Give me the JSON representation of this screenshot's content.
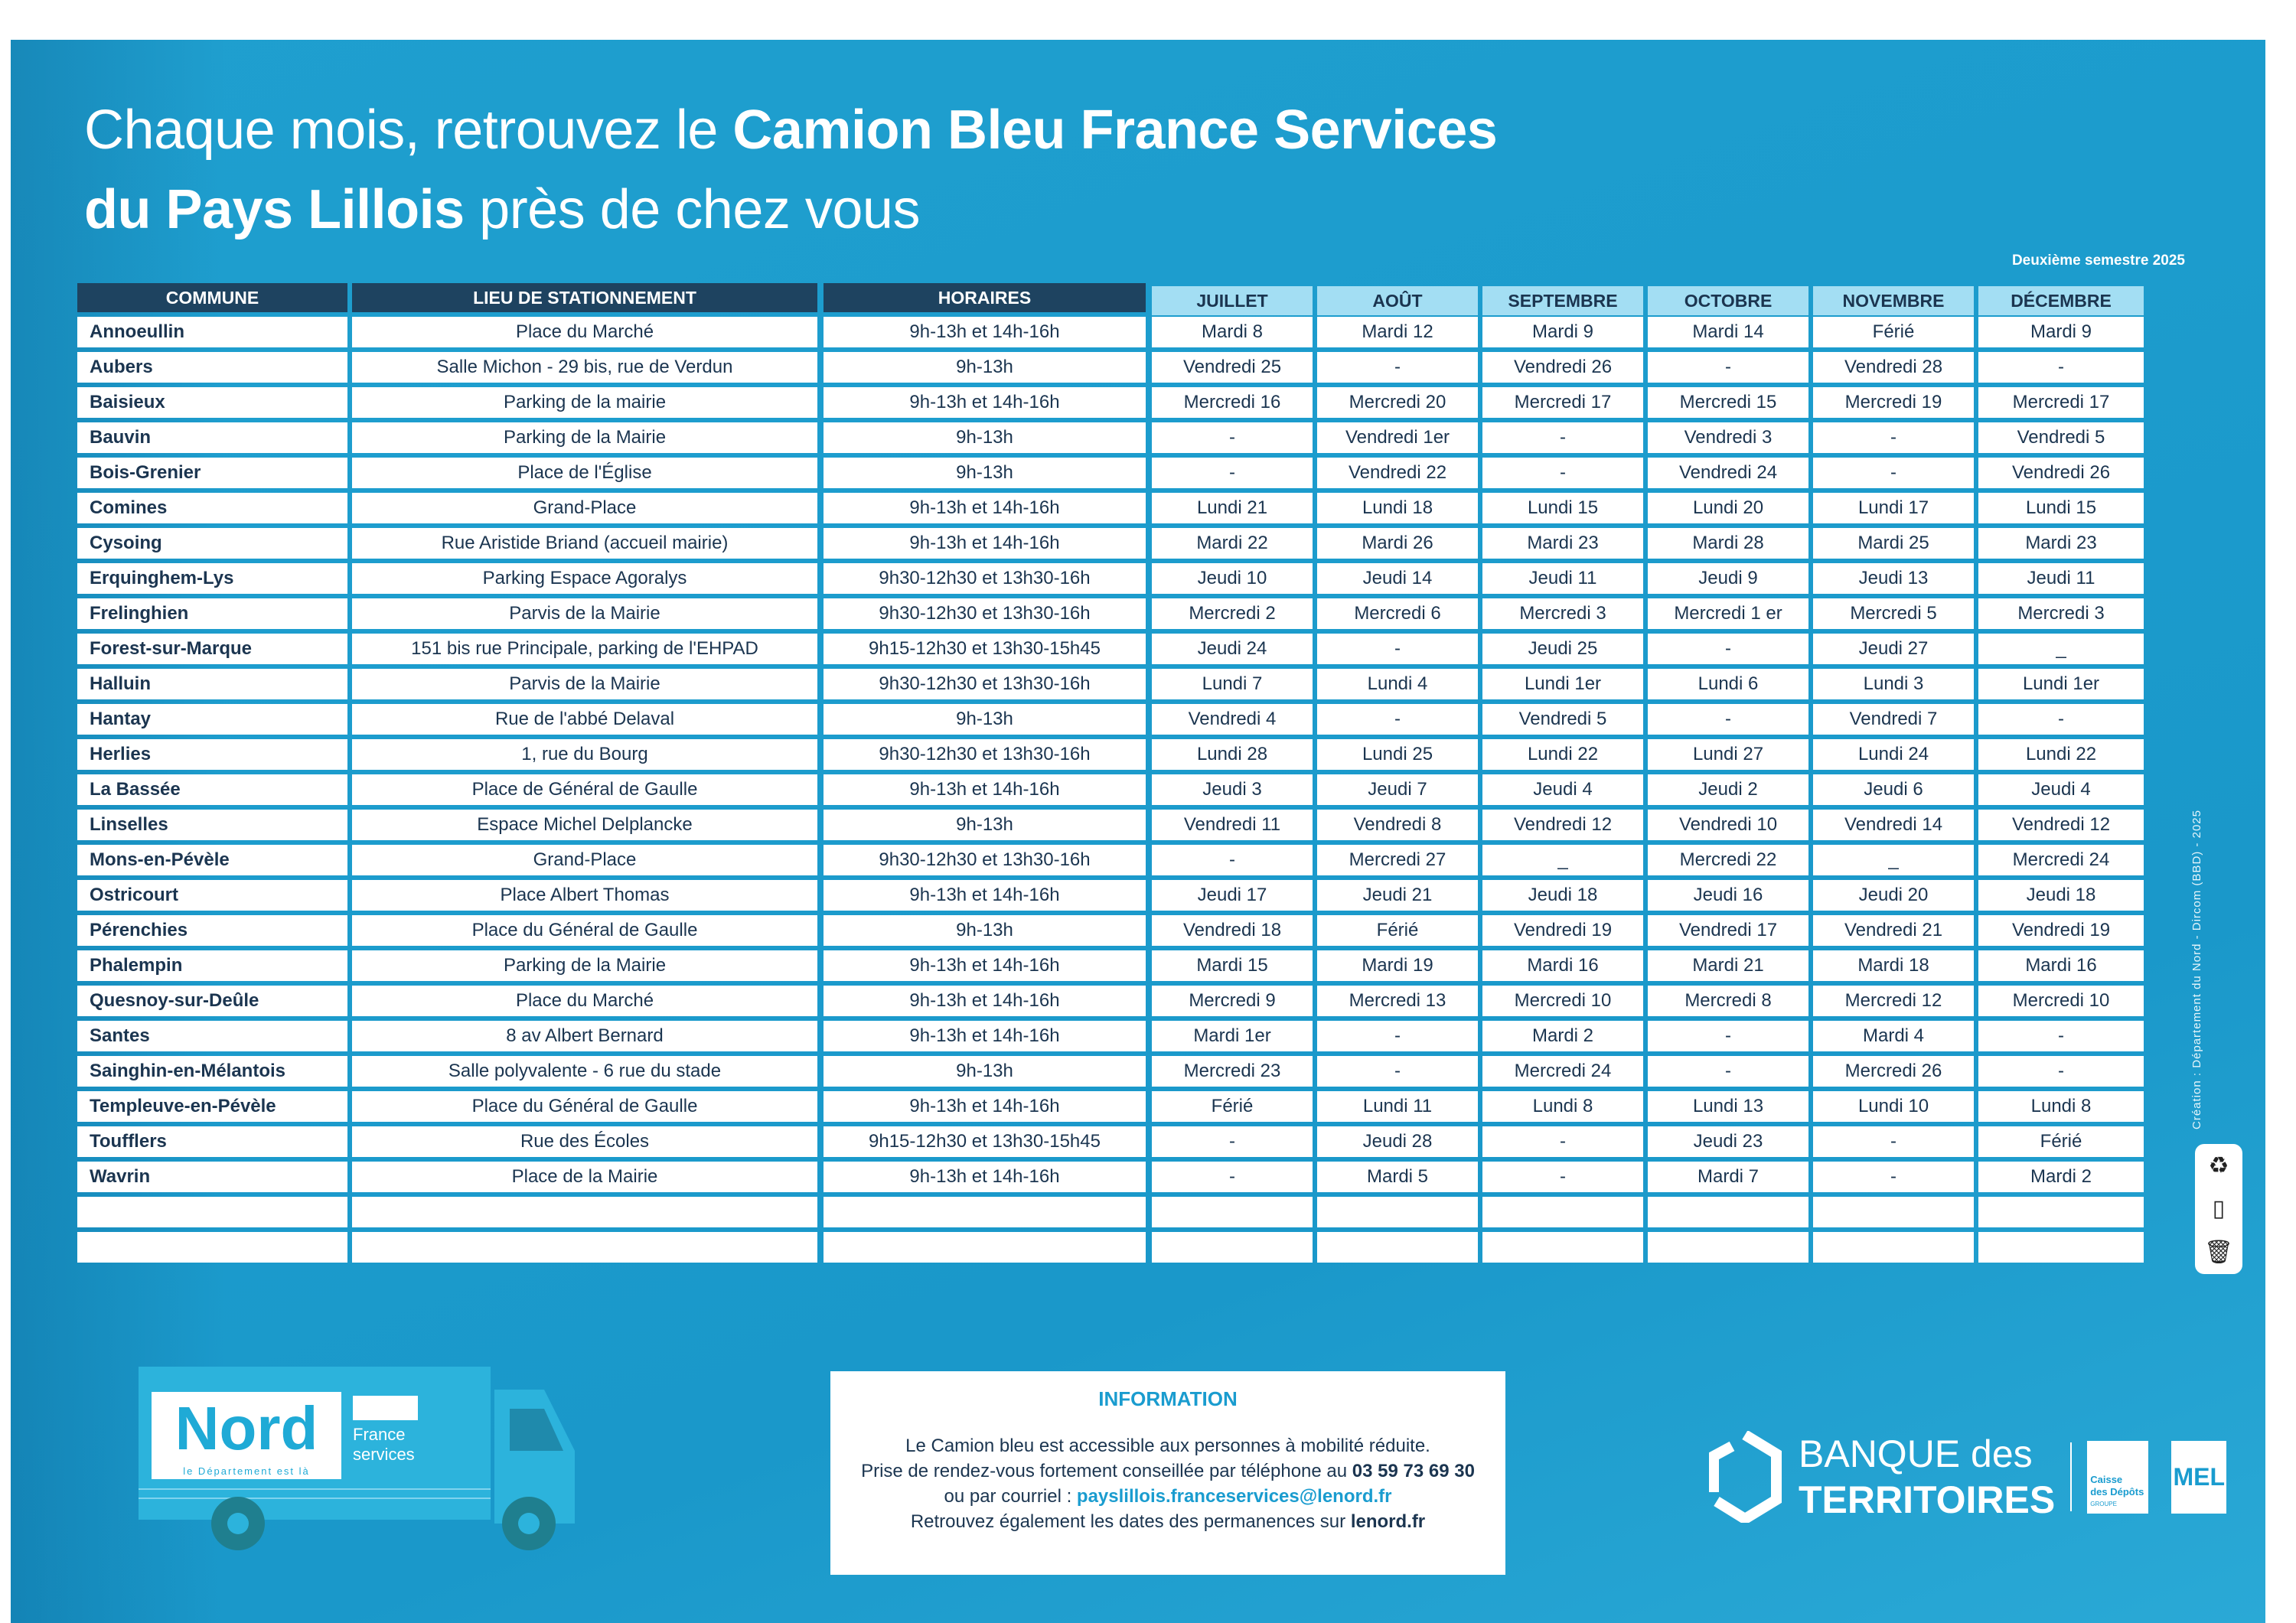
{
  "title": {
    "part1": "Chaque mois, retrouvez le ",
    "bold1": "Camion Bleu France Services",
    "bold2": "du Pays Lillois",
    "part2": " près de chez vous"
  },
  "semestre": "Deuxième semestre 2025",
  "headers": [
    "COMMUNE",
    "LIEU DE STATIONNEMENT",
    "HORAIRES",
    "JUILLET",
    "AOÛT",
    "SEPTEMBRE",
    "OCTOBRE",
    "NOVEMBRE",
    "DÉCEMBRE"
  ],
  "rows": [
    [
      "Annoeullin",
      "Place du Marché",
      "9h-13h et 14h-16h",
      "Mardi 8",
      "Mardi 12",
      "Mardi 9",
      "Mardi 14",
      "Férié",
      "Mardi 9"
    ],
    [
      "Aubers",
      "Salle Michon - 29 bis, rue de Verdun",
      "9h-13h",
      "Vendredi 25",
      "-",
      "Vendredi 26",
      "-",
      "Vendredi 28",
      "-"
    ],
    [
      "Baisieux",
      "Parking de la mairie",
      "9h-13h et 14h-16h",
      "Mercredi 16",
      "Mercredi 20",
      "Mercredi 17",
      "Mercredi 15",
      "Mercredi 19",
      "Mercredi 17"
    ],
    [
      "Bauvin",
      "Parking de la Mairie",
      "9h-13h",
      "-",
      "Vendredi 1er",
      "-",
      "Vendredi 3",
      "-",
      "Vendredi 5"
    ],
    [
      "Bois-Grenier",
      "Place de l'Église",
      "9h-13h",
      "-",
      "Vendredi 22",
      "-",
      "Vendredi 24",
      "-",
      "Vendredi 26"
    ],
    [
      "Comines",
      "Grand-Place",
      "9h-13h et 14h-16h",
      "Lundi 21",
      "Lundi 18",
      "Lundi 15",
      "Lundi 20",
      "Lundi 17",
      "Lundi 15"
    ],
    [
      "Cysoing",
      "Rue Aristide Briand (accueil mairie)",
      "9h-13h et 14h-16h",
      "Mardi 22",
      "Mardi 26",
      "Mardi 23",
      "Mardi 28",
      "Mardi 25",
      "Mardi 23"
    ],
    [
      "Erquinghem-Lys",
      "Parking Espace Agoralys",
      "9h30-12h30 et 13h30-16h",
      "Jeudi 10",
      "Jeudi 14",
      "Jeudi 11",
      "Jeudi 9",
      "Jeudi 13",
      "Jeudi 11"
    ],
    [
      "Frelinghien",
      "Parvis de la Mairie",
      "9h30-12h30 et 13h30-16h",
      "Mercredi 2",
      "Mercredi 6",
      "Mercredi 3",
      "Mercredi 1 er",
      "Mercredi 5",
      "Mercredi 3"
    ],
    [
      "Forest-sur-Marque",
      "151 bis rue Principale, parking de l'EHPAD",
      "9h15-12h30 et 13h30-15h45",
      "Jeudi 24",
      "-",
      "Jeudi 25",
      "-",
      "Jeudi 27",
      "_"
    ],
    [
      "Halluin",
      "Parvis de la Mairie",
      "9h30-12h30 et 13h30-16h",
      "Lundi 7",
      "Lundi 4",
      "Lundi 1er",
      "Lundi 6",
      "Lundi 3",
      "Lundi 1er"
    ],
    [
      "Hantay",
      "Rue de l'abbé Delaval",
      "9h-13h",
      "Vendredi 4",
      "-",
      "Vendredi 5",
      "-",
      "Vendredi 7",
      "-"
    ],
    [
      "Herlies",
      "1, rue du Bourg",
      "9h30-12h30 et 13h30-16h",
      "Lundi 28",
      "Lundi 25",
      "Lundi 22",
      "Lundi 27",
      "Lundi 24",
      "Lundi 22"
    ],
    [
      "La Bassée",
      "Place de Général de Gaulle",
      "9h-13h et 14h-16h",
      "Jeudi 3",
      "Jeudi 7",
      "Jeudi 4",
      "Jeudi 2",
      "Jeudi 6",
      "Jeudi 4"
    ],
    [
      "Linselles",
      "Espace Michel Delplancke",
      "9h-13h",
      "Vendredi 11",
      "Vendredi 8",
      "Vendredi 12",
      "Vendredi 10",
      "Vendredi 14",
      "Vendredi 12"
    ],
    [
      "Mons-en-Pévèle",
      "Grand-Place",
      "9h30-12h30 et 13h30-16h",
      "-",
      "Mercredi 27",
      "_",
      "Mercredi 22",
      "_",
      "Mercredi 24"
    ],
    [
      "Ostricourt",
      "Place Albert Thomas",
      "9h-13h et 14h-16h",
      "Jeudi 17",
      "Jeudi 21",
      "Jeudi 18",
      "Jeudi 16",
      "Jeudi 20",
      "Jeudi 18"
    ],
    [
      "Pérenchies",
      "Place du Général de Gaulle",
      "9h-13h",
      "Vendredi 18",
      "Férié",
      "Vendredi 19",
      "Vendredi 17",
      "Vendredi 21",
      "Vendredi 19"
    ],
    [
      "Phalempin",
      "Parking de la Mairie",
      "9h-13h et 14h-16h",
      "Mardi 15",
      "Mardi 19",
      "Mardi 16",
      "Mardi 21",
      "Mardi 18",
      "Mardi 16"
    ],
    [
      "Quesnoy-sur-Deûle",
      "Place du Marché",
      "9h-13h et 14h-16h",
      "Mercredi 9",
      "Mercredi 13",
      "Mercredi 10",
      "Mercredi 8",
      "Mercredi 12",
      "Mercredi 10"
    ],
    [
      "Santes",
      "8 av Albert Bernard",
      "9h-13h et 14h-16h",
      "Mardi 1er",
      "-",
      "Mardi 2",
      "-",
      "Mardi 4",
      "-"
    ],
    [
      "Sainghin-en-Mélantois",
      "Salle polyvalente - 6 rue du stade",
      "9h-13h",
      "Mercredi 23",
      "-",
      "Mercredi 24",
      "-",
      "Mercredi 26",
      "-"
    ],
    [
      "Templeuve-en-Pévèle",
      "Place du Général de Gaulle",
      "9h-13h et 14h-16h",
      "Férié",
      "Lundi 11",
      "Lundi 8",
      "Lundi 13",
      "Lundi 10",
      "Lundi 8"
    ],
    [
      "Toufflers",
      "Rue des Écoles",
      "9h15-12h30 et 13h30-15h45",
      "-",
      "Jeudi 28",
      "-",
      "Jeudi 23",
      "-",
      "Férié"
    ],
    [
      "Wavrin",
      "Place de la Mairie",
      "9h-13h et 14h-16h",
      "-",
      "Mardi 5",
      "-",
      "Mardi 7",
      "-",
      "Mardi 2"
    ]
  ],
  "credit": "Création : Département du Nord - Dircom (BBD) - 2025",
  "truck": {
    "nord": "Nord",
    "tagline": "le Département est là",
    "fs1": "France",
    "fs2": "services"
  },
  "info": {
    "heading": "INFORMATION",
    "line1": "Le Camion bleu est accessible aux personnes à mobilité réduite.",
    "line2": "Prise de rendez-vous fortement conseillée par téléphone au ",
    "phone": "03 59 73 69 30",
    "line3": "ou par courriel : ",
    "email": "payslillois.franceservices@lenord.fr",
    "line4": "Retrouvez également les dates des permanences sur ",
    "site": "lenord.fr"
  },
  "logos": {
    "bdt1": "BANQUE des",
    "bdt2": "TERRITOIRES",
    "cdc1": "Caisse",
    "cdc2": "des Dépôts",
    "cdc3": "GROUPE",
    "mel": "MEL"
  },
  "colors": {
    "panel": "#1c9ccd",
    "header_dark": "#1e4360",
    "header_month": "#a3def3",
    "text": "#1b3550"
  }
}
